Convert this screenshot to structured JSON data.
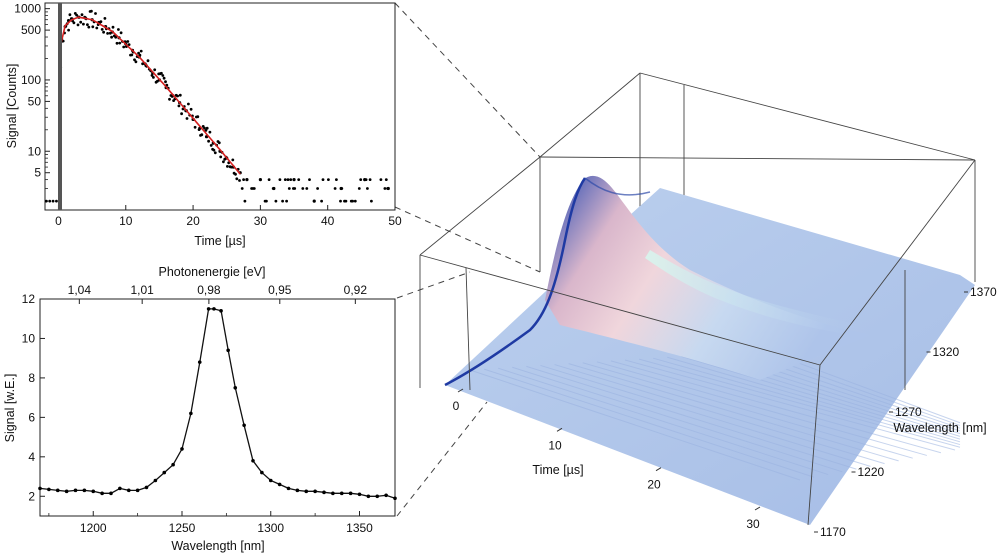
{
  "chart_data": [
    {
      "type": "scatter",
      "panel": "top-left",
      "xlabel": "Time [µs]",
      "ylabel": "Signal [Counts]",
      "xlim": [
        -2,
        50
      ],
      "ylim": [
        1.5,
        1200
      ],
      "yscale": "log",
      "xticks": [
        0,
        10,
        20,
        30,
        40,
        50
      ],
      "yticks": [
        5,
        10,
        50,
        100,
        500,
        1000
      ],
      "grid": false,
      "series": [
        {
          "kind": "points",
          "color": "#000000",
          "x": [
            0.3,
            0.5,
            1,
            1.5,
            2,
            3,
            4,
            5,
            6,
            7,
            8,
            9,
            10,
            11,
            12,
            13,
            14,
            15,
            16,
            17,
            18,
            19,
            20,
            21,
            22,
            23,
            24,
            25,
            26,
            27,
            28,
            30,
            32,
            35,
            38,
            42,
            45.5,
            49
          ],
          "y": [
            150,
            350,
            560,
            680,
            720,
            760,
            740,
            700,
            640,
            560,
            470,
            390,
            320,
            260,
            210,
            160,
            125,
            100,
            78,
            60,
            48,
            37,
            28,
            21,
            16,
            13,
            10,
            8,
            6,
            5,
            4,
            4,
            3,
            4,
            2,
            3,
            4,
            3
          ]
        },
        {
          "kind": "fit",
          "color": "#d42020",
          "x": [
            0.3,
            1,
            2,
            3,
            5,
            8,
            12,
            16,
            20,
            24,
            27
          ],
          "y": [
            300,
            580,
            700,
            760,
            700,
            480,
            210,
            80,
            29,
            10.5,
            4.8
          ]
        }
      ]
    },
    {
      "type": "line",
      "panel": "bottom-left",
      "xlabel": "Wavelength [nm]",
      "ylabel": "Signal [w.E.]",
      "x2label": "Photonenergie [eV]",
      "xlim": [
        1170,
        1370
      ],
      "ylim": [
        1,
        12
      ],
      "xticks": [
        1200,
        1250,
        1300,
        1350
      ],
      "yticks": [
        2,
        4,
        6,
        8,
        10,
        12
      ],
      "x2ticks": [
        "1,04",
        "1,01",
        "0,98",
        "0,95",
        "0,92"
      ],
      "grid": false,
      "series": [
        {
          "color": "#000000",
          "x": [
            1170,
            1175,
            1180,
            1185,
            1190,
            1195,
            1200,
            1205,
            1210,
            1215,
            1220,
            1225,
            1230,
            1235,
            1240,
            1245,
            1250,
            1255,
            1260,
            1265,
            1268,
            1272,
            1276,
            1280,
            1285,
            1290,
            1295,
            1300,
            1305,
            1310,
            1315,
            1320,
            1325,
            1330,
            1335,
            1340,
            1345,
            1350,
            1355,
            1360,
            1365,
            1370
          ],
          "y": [
            2.4,
            2.35,
            2.3,
            2.25,
            2.3,
            2.3,
            2.25,
            2.15,
            2.15,
            2.4,
            2.3,
            2.3,
            2.45,
            2.8,
            3.2,
            3.6,
            4.4,
            6.2,
            8.8,
            11.5,
            11.5,
            11.4,
            9.4,
            7.5,
            5.6,
            3.8,
            3.2,
            2.8,
            2.6,
            2.4,
            2.3,
            2.25,
            2.25,
            2.2,
            2.15,
            2.15,
            2.15,
            2.1,
            2.0,
            2.0,
            2.05,
            1.9
          ]
        }
      ]
    },
    {
      "type": "surface",
      "panel": "right",
      "xlabel": "Time [µs]",
      "ylabel": "Wavelength [nm]",
      "xticks": [
        0,
        10,
        20,
        30
      ],
      "yticks": [
        1170,
        1220,
        1270,
        1320,
        1370
      ],
      "peak_wavelength": 1270,
      "colors": {
        "low": "#a9bfe8",
        "high": "#e8c2d2",
        "edge": "#1f3aa3",
        "ridge": "#b7f0e8"
      }
    }
  ]
}
